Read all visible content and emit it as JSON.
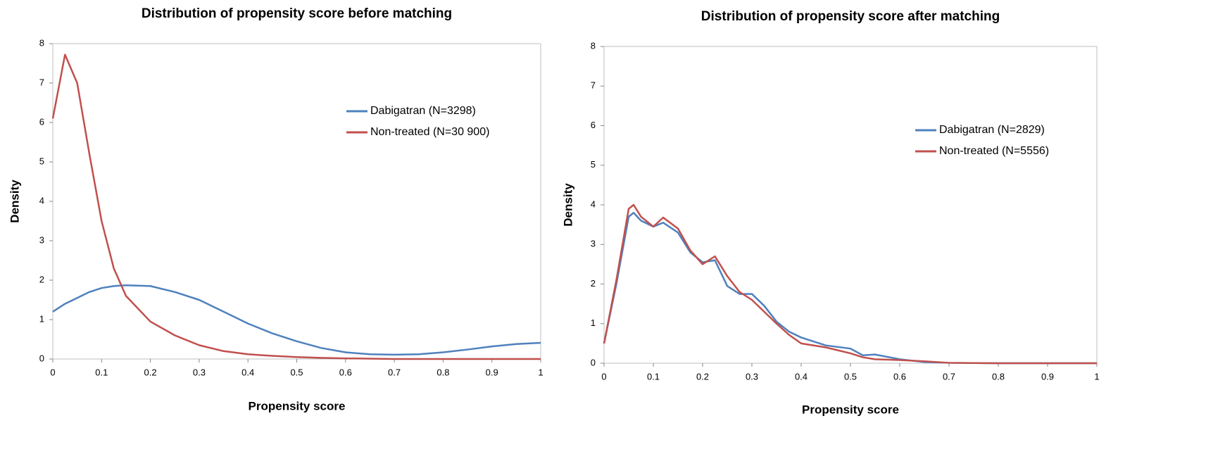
{
  "chart_data": [
    {
      "type": "line",
      "title": "Distribution of propensity score before matching",
      "xlabel": "Propensity score",
      "ylabel": "Density",
      "x": [
        0,
        0.025,
        0.05,
        0.075,
        0.1,
        0.125,
        0.15,
        0.2,
        0.25,
        0.3,
        0.35,
        0.4,
        0.45,
        0.5,
        0.55,
        0.6,
        0.65,
        0.7,
        0.75,
        0.8,
        0.85,
        0.9,
        0.95,
        1
      ],
      "series": [
        {
          "name": "Dabigatran (N=3298)",
          "color": "#4f81bd",
          "values": [
            1.2,
            1.4,
            1.55,
            1.7,
            1.8,
            1.85,
            1.87,
            1.85,
            1.7,
            1.5,
            1.2,
            0.9,
            0.65,
            0.45,
            0.28,
            0.17,
            0.12,
            0.11,
            0.12,
            0.17,
            0.24,
            0.32,
            0.38,
            0.41
          ]
        },
        {
          "name": "Non-treated (N=30 900)",
          "color": "#c0504d",
          "values": [
            6.1,
            7.72,
            7.0,
            5.2,
            3.5,
            2.3,
            1.6,
            0.95,
            0.6,
            0.35,
            0.2,
            0.12,
            0.08,
            0.05,
            0.03,
            0.015,
            0.01,
            0,
            0,
            0,
            0,
            0,
            0,
            0
          ]
        }
      ],
      "xlim": [
        0,
        1
      ],
      "xticks": [
        0,
        0.1,
        0.2,
        0.3,
        0.4,
        0.5,
        0.6,
        0.7,
        0.8,
        0.9,
        1
      ],
      "ylim": [
        0,
        8
      ],
      "yticks": [
        0,
        1,
        2,
        3,
        4,
        5,
        6,
        7,
        8
      ],
      "grid": false,
      "legend": "upper right"
    },
    {
      "type": "line",
      "title": "Distribution of propensity score after matching",
      "xlabel": "Propensity score",
      "ylabel": "Density",
      "x": [
        0,
        0.025,
        0.05,
        0.06,
        0.075,
        0.1,
        0.12,
        0.15,
        0.175,
        0.2,
        0.225,
        0.25,
        0.275,
        0.3,
        0.325,
        0.35,
        0.375,
        0.4,
        0.45,
        0.5,
        0.525,
        0.55,
        0.6,
        0.65,
        0.7,
        0.8,
        0.9,
        1
      ],
      "series": [
        {
          "name": "Dabigatran (N=2829)",
          "color": "#4f81bd",
          "values": [
            0.5,
            2.0,
            3.7,
            3.8,
            3.6,
            3.45,
            3.55,
            3.3,
            2.8,
            2.55,
            2.6,
            1.95,
            1.75,
            1.75,
            1.45,
            1.05,
            0.8,
            0.65,
            0.45,
            0.37,
            0.2,
            0.22,
            0.1,
            0.03,
            0.01,
            0,
            0,
            0
          ]
        },
        {
          "name": "Non-treated (N=5556)",
          "color": "#c0504d",
          "values": [
            0.5,
            2.1,
            3.9,
            4.0,
            3.7,
            3.45,
            3.68,
            3.4,
            2.85,
            2.5,
            2.7,
            2.2,
            1.8,
            1.6,
            1.3,
            1.0,
            0.72,
            0.5,
            0.4,
            0.25,
            0.15,
            0.1,
            0.08,
            0.05,
            0.01,
            0,
            0,
            0
          ]
        }
      ],
      "xlim": [
        0,
        1
      ],
      "xticks": [
        0,
        0.1,
        0.2,
        0.3,
        0.4,
        0.5,
        0.6,
        0.7,
        0.8,
        0.9,
        1
      ],
      "ylim": [
        0,
        8
      ],
      "yticks": [
        0,
        1,
        2,
        3,
        4,
        5,
        6,
        7,
        8
      ],
      "grid": false,
      "legend": "upper right"
    }
  ]
}
